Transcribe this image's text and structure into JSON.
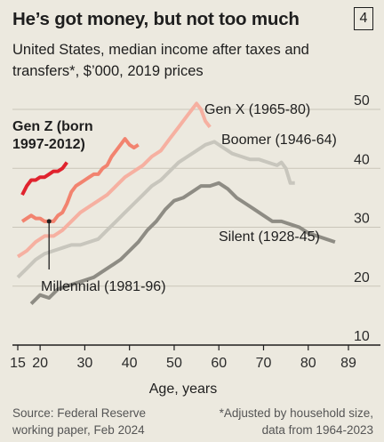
{
  "header": {
    "title": "He’s got money, but not too much",
    "badge": "4",
    "subtitle": "United States, median income after taxes and transfers*, $’000, 2019 prices"
  },
  "footer": {
    "source": "Source: Federal Reserve working paper, Feb 2024",
    "note": "*Adjusted by household size, data from 1964-2023"
  },
  "colors": {
    "background": "#ece9df",
    "gridline": "#c9c5b9",
    "gen_z": "#e0232e",
    "millennial": "#f2836f",
    "gen_x": "#f6b0a1",
    "boomer": "#c8c6bd",
    "silent": "#8e8c84"
  },
  "chart_data": {
    "type": "line",
    "title": "He’s got money, but not too much",
    "subtitle": "United States, median income after taxes and transfers*, $’000, 2019 prices",
    "xlabel": "Age, years",
    "ylabel": "",
    "xlim": [
      15,
      89
    ],
    "ylim": [
      10,
      50
    ],
    "xticks": [
      "15",
      "20",
      "30",
      "40",
      "50",
      "60",
      "70",
      "80",
      "89"
    ],
    "yticks": [
      "10",
      "20",
      "30",
      "40",
      "50"
    ],
    "grid": true,
    "series": [
      {
        "name": "Gen Z (born 1997-2012)",
        "color": "#e0232e",
        "x": [
          16,
          17,
          18,
          19,
          20,
          21,
          22,
          23,
          24,
          25,
          26
        ],
        "y": [
          35.5,
          37,
          38,
          38,
          38.5,
          38.5,
          39,
          39.5,
          39.5,
          40,
          41
        ]
      },
      {
        "name": "Millennial (1981-96)",
        "color": "#f2836f",
        "x": [
          16,
          17,
          18,
          19,
          20,
          21,
          22,
          23,
          24,
          25,
          26,
          27,
          28,
          29,
          30,
          31,
          32,
          33,
          34,
          35,
          36,
          37,
          38,
          39,
          40,
          41,
          42
        ],
        "y": [
          31,
          31.5,
          32,
          31.5,
          31.5,
          31,
          31,
          31,
          32,
          32.5,
          34,
          36,
          37,
          37.5,
          38,
          38.5,
          39,
          39,
          40,
          40.5,
          42,
          43,
          44,
          45,
          44,
          43.5,
          44
        ]
      },
      {
        "name": "Gen X (1965-80)",
        "color": "#f6b0a1",
        "x": [
          15,
          17,
          19,
          21,
          23,
          25,
          27,
          29,
          31,
          33,
          35,
          37,
          39,
          41,
          43,
          45,
          47,
          49,
          51,
          53,
          54,
          55,
          56,
          57,
          58
        ],
        "y": [
          25,
          26,
          27.5,
          28.5,
          28.5,
          29.5,
          31,
          32.5,
          33.5,
          34.5,
          35.5,
          37,
          38.5,
          39.5,
          40.5,
          42,
          43,
          45,
          47,
          49,
          50,
          51,
          50,
          48,
          47
        ]
      },
      {
        "name": "Boomer (1946-64)",
        "color": "#c8c6bd",
        "x": [
          15,
          17,
          19,
          21,
          23,
          25,
          27,
          29,
          31,
          33,
          35,
          37,
          39,
          41,
          43,
          45,
          47,
          49,
          51,
          53,
          55,
          57,
          59,
          61,
          63,
          65,
          67,
          69,
          71,
          73,
          74,
          75,
          76,
          77
        ],
        "y": [
          21.5,
          23,
          24.5,
          25.5,
          26,
          26.5,
          27,
          27,
          27.5,
          28,
          29.5,
          31,
          32.5,
          34,
          35.5,
          37,
          38,
          39.5,
          41,
          42,
          43,
          44,
          44.5,
          43.5,
          42.5,
          42,
          41.5,
          41.5,
          41,
          40.5,
          41,
          40,
          37.5,
          37.5
        ]
      },
      {
        "name": "Silent (1928-45)",
        "color": "#8e8c84",
        "x": [
          18,
          20,
          22,
          24,
          26,
          28,
          30,
          32,
          34,
          36,
          38,
          40,
          42,
          44,
          46,
          48,
          50,
          52,
          54,
          56,
          58,
          60,
          62,
          64,
          66,
          68,
          70,
          72,
          74,
          76,
          78,
          80,
          82,
          84,
          86
        ],
        "y": [
          17,
          18.5,
          18,
          19.5,
          20,
          20.5,
          21,
          21.5,
          22.5,
          23.5,
          24.5,
          26,
          27.5,
          29.5,
          31,
          33,
          34.5,
          35,
          36,
          37,
          37,
          37.5,
          36.5,
          35,
          34,
          33,
          32,
          31,
          31,
          30.5,
          30,
          29,
          28.5,
          28,
          27.5
        ]
      }
    ]
  }
}
